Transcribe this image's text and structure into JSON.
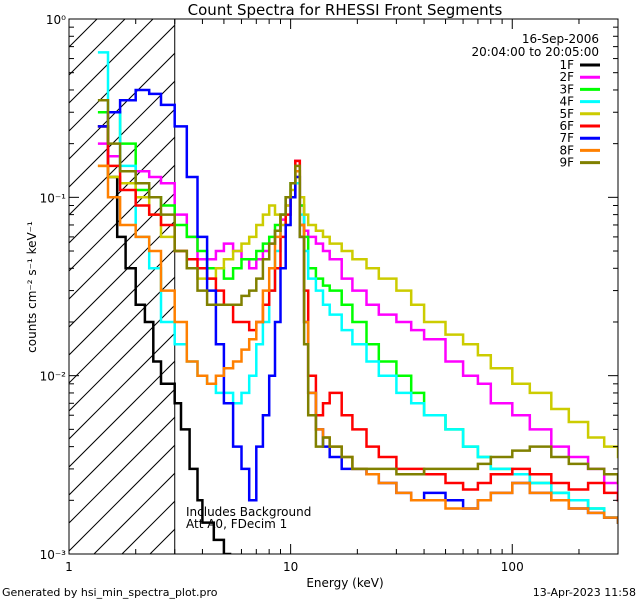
{
  "chart_data": {
    "type": "line",
    "title": "Count Spectra for RHESSI Front Segments",
    "xlabel": "Energy (keV)",
    "ylabel": "counts cm⁻² s⁻¹ keV⁻¹",
    "xscale": "log",
    "yscale": "log",
    "xlim": [
      1,
      300
    ],
    "ylim": [
      0.001,
      1
    ],
    "x_ticks": [
      {
        "value": 1,
        "label": "1"
      },
      {
        "value": 10,
        "label": "10"
      },
      {
        "value": 100,
        "label": "100"
      }
    ],
    "y_ticks": [
      {
        "value": 1,
        "label": "10⁰"
      },
      {
        "value": 0.1,
        "label": "10⁻¹"
      },
      {
        "value": 0.01,
        "label": "10⁻²"
      },
      {
        "value": 0.001,
        "label": "10⁻³"
      }
    ],
    "hatched_region": {
      "x_from": 1,
      "x_to": 3
    },
    "date": "16-Sep-2006",
    "time_range": "20:04:00 to 20:05:00",
    "annotation_lines": [
      "Includes Background",
      "Att A0, FDecim 1"
    ],
    "legend_position": "top-right",
    "series": [
      {
        "name": "1F",
        "color": "#000000",
        "x": [
          1.35,
          1.5,
          1.65,
          1.8,
          2.0,
          2.2,
          2.4,
          2.6,
          2.8,
          3.0,
          3.2,
          3.5,
          3.8,
          4.0,
          4.5,
          5.0
        ],
        "y": [
          0.25,
          0.13,
          0.06,
          0.04,
          0.025,
          0.02,
          0.012,
          0.009,
          0.009,
          0.007,
          0.005,
          0.003,
          0.002,
          0.0015,
          0.0012,
          0.001
        ]
      },
      {
        "name": "2F",
        "color": "#ff00ff",
        "x": [
          1.35,
          1.5,
          1.7,
          2.0,
          2.3,
          2.6,
          3.0,
          3.4,
          3.8,
          4.2,
          4.6,
          5.0,
          5.5,
          6.0,
          6.5,
          7.0,
          7.5,
          8.0,
          8.5,
          9.0,
          9.5,
          10.0,
          10.5,
          11.0,
          11.5,
          12.0,
          13.0,
          14.0,
          15.0,
          17.0,
          19.0,
          22.0,
          25.0,
          30.0,
          35.0,
          40.0,
          50.0,
          60.0,
          70.0,
          80.0,
          100.0,
          120.0,
          150.0,
          180.0,
          220.0,
          260.0,
          300.0
        ],
        "y": [
          0.2,
          0.17,
          0.14,
          0.14,
          0.13,
          0.12,
          0.08,
          0.06,
          0.045,
          0.045,
          0.05,
          0.055,
          0.05,
          0.045,
          0.04,
          0.045,
          0.05,
          0.055,
          0.065,
          0.075,
          0.09,
          0.1,
          0.16,
          0.09,
          0.065,
          0.06,
          0.055,
          0.05,
          0.045,
          0.035,
          0.03,
          0.025,
          0.022,
          0.02,
          0.018,
          0.016,
          0.012,
          0.01,
          0.009,
          0.007,
          0.006,
          0.005,
          0.004,
          0.0035,
          0.003,
          0.0025,
          0.002
        ]
      },
      {
        "name": "3F",
        "color": "#00ff00",
        "x": [
          1.35,
          1.5,
          1.7,
          2.0,
          2.3,
          2.6,
          3.0,
          3.4,
          3.8,
          4.2,
          4.6,
          5.0,
          5.5,
          6.0,
          6.5,
          7.0,
          7.5,
          8.0,
          8.5,
          9.0,
          9.5,
          10.0,
          10.5,
          11.0,
          11.5,
          12.0,
          13.0,
          14.0,
          15.0,
          17.0,
          19.0,
          22.0,
          25.0,
          30.0,
          35.0,
          40.0,
          50.0,
          60.0,
          70.0,
          80.0,
          100.0,
          120.0,
          150.0,
          180.0,
          220.0,
          260.0,
          300.0
        ],
        "y": [
          0.3,
          0.3,
          0.2,
          0.11,
          0.1,
          0.09,
          0.07,
          0.06,
          0.05,
          0.04,
          0.04,
          0.035,
          0.04,
          0.045,
          0.045,
          0.05,
          0.055,
          0.06,
          0.07,
          0.08,
          0.1,
          0.12,
          0.14,
          0.09,
          0.06,
          0.04,
          0.035,
          0.032,
          0.03,
          0.025,
          0.02,
          0.015,
          0.012,
          0.01,
          0.008,
          0.006,
          0.005,
          0.004,
          0.0035,
          0.003,
          0.0028,
          0.0025,
          0.0022,
          0.002,
          0.0018,
          0.0016,
          0.0015
        ]
      },
      {
        "name": "4F",
        "color": "#00ffff",
        "x": [
          1.35,
          1.5,
          1.7,
          2.0,
          2.3,
          2.6,
          3.0,
          3.4,
          3.8,
          4.2,
          4.6,
          5.0,
          5.5,
          6.0,
          6.5,
          7.0,
          7.5,
          8.0,
          8.5,
          9.0,
          9.5,
          10.0,
          10.5,
          11.0,
          11.5,
          12.0,
          13.0,
          14.0,
          15.0,
          17.0,
          19.0,
          22.0,
          25.0,
          30.0,
          35.0,
          40.0,
          50.0,
          60.0,
          70.0,
          80.0,
          100.0,
          120.0,
          150.0,
          180.0,
          220.0,
          260.0,
          300.0
        ],
        "y": [
          0.65,
          0.3,
          0.15,
          0.06,
          0.04,
          0.02,
          0.015,
          0.012,
          0.01,
          0.009,
          0.008,
          0.008,
          0.007,
          0.008,
          0.01,
          0.015,
          0.02,
          0.03,
          0.05,
          0.08,
          0.1,
          0.12,
          0.12,
          0.08,
          0.05,
          0.035,
          0.03,
          0.025,
          0.022,
          0.018,
          0.015,
          0.012,
          0.01,
          0.008,
          0.007,
          0.006,
          0.005,
          0.004,
          0.0035,
          0.003,
          0.0028,
          0.0025,
          0.0022,
          0.002,
          0.0018,
          0.0016,
          0.0015
        ]
      },
      {
        "name": "5F",
        "color": "#cccc00",
        "x": [
          1.35,
          1.5,
          1.7,
          2.0,
          2.3,
          2.6,
          3.0,
          3.4,
          3.8,
          4.2,
          4.6,
          5.0,
          5.5,
          6.0,
          6.5,
          7.0,
          7.5,
          8.0,
          8.5,
          9.0,
          9.5,
          10.0,
          10.5,
          11.0,
          11.5,
          12.0,
          13.0,
          14.0,
          15.0,
          17.0,
          19.0,
          22.0,
          25.0,
          30.0,
          35.0,
          40.0,
          50.0,
          60.0,
          70.0,
          80.0,
          100.0,
          120.0,
          150.0,
          180.0,
          220.0,
          260.0,
          300.0
        ],
        "y": [
          0.15,
          0.13,
          0.12,
          0.1,
          0.08,
          0.06,
          0.05,
          0.04,
          0.035,
          0.035,
          0.04,
          0.045,
          0.05,
          0.055,
          0.06,
          0.07,
          0.08,
          0.09,
          0.08,
          0.07,
          0.09,
          0.11,
          0.13,
          0.1,
          0.08,
          0.07,
          0.065,
          0.06,
          0.055,
          0.05,
          0.045,
          0.04,
          0.035,
          0.03,
          0.025,
          0.02,
          0.017,
          0.015,
          0.013,
          0.011,
          0.009,
          0.008,
          0.0065,
          0.0055,
          0.0045,
          0.004,
          0.0035
        ]
      },
      {
        "name": "6F",
        "color": "#ff0000",
        "x": [
          1.35,
          1.5,
          1.7,
          2.0,
          2.3,
          2.6,
          3.0,
          3.4,
          3.8,
          4.2,
          4.6,
          5.0,
          5.5,
          6.0,
          6.5,
          7.0,
          7.5,
          8.0,
          8.5,
          9.0,
          9.5,
          10.0,
          10.5,
          11.0,
          11.5,
          12.0,
          13.0,
          14.0,
          15.0,
          17.0,
          19.0,
          22.0,
          25.0,
          30.0,
          35.0,
          40.0,
          50.0,
          60.0,
          70.0,
          80.0,
          100.0,
          120.0,
          150.0,
          180.0,
          220.0,
          260.0,
          300.0
        ],
        "y": [
          0.25,
          0.15,
          0.11,
          0.09,
          0.08,
          0.07,
          0.05,
          0.045,
          0.04,
          0.035,
          0.03,
          0.025,
          0.02,
          0.02,
          0.018,
          0.02,
          0.025,
          0.03,
          0.04,
          0.06,
          0.08,
          0.1,
          0.16,
          0.07,
          0.03,
          0.01,
          0.006,
          0.007,
          0.008,
          0.006,
          0.005,
          0.004,
          0.0035,
          0.003,
          0.003,
          0.0028,
          0.0025,
          0.0023,
          0.0025,
          0.0028,
          0.003,
          0.0028,
          0.0025,
          0.0023,
          0.0025,
          0.0022,
          0.002
        ]
      },
      {
        "name": "7F",
        "color": "#0000ff",
        "x": [
          1.35,
          1.5,
          1.7,
          2.0,
          2.3,
          2.6,
          3.0,
          3.4,
          3.8,
          4.2,
          4.6,
          5.0,
          5.5,
          6.0,
          6.5,
          7.0,
          7.5,
          8.0,
          8.5,
          9.0,
          9.5,
          10.0,
          10.5,
          11.0,
          11.5,
          12.0,
          13.0,
          14.0,
          15.0,
          17.0,
          19.0,
          22.0,
          25.0,
          30.0,
          35.0,
          40.0,
          50.0,
          60.0,
          70.0,
          80.0,
          100.0,
          120.0,
          150.0,
          180.0,
          220.0,
          260.0,
          300.0
        ],
        "y": [
          0.25,
          0.3,
          0.35,
          0.4,
          0.38,
          0.33,
          0.25,
          0.13,
          0.06,
          0.03,
          0.015,
          0.007,
          0.004,
          0.003,
          0.002,
          0.004,
          0.006,
          0.01,
          0.02,
          0.04,
          0.07,
          0.1,
          0.13,
          0.06,
          0.02,
          0.008,
          0.005,
          0.004,
          0.0035,
          0.003,
          0.003,
          0.0028,
          0.0025,
          0.0022,
          0.002,
          0.0022,
          0.002,
          0.0018,
          0.002,
          0.0022,
          0.0025,
          0.0022,
          0.002,
          0.0018,
          0.0017,
          0.0016,
          0.0015
        ]
      },
      {
        "name": "8F",
        "color": "#ff8000",
        "x": [
          1.35,
          1.5,
          1.7,
          2.0,
          2.3,
          2.6,
          3.0,
          3.4,
          3.8,
          4.2,
          4.6,
          5.0,
          5.5,
          6.0,
          6.5,
          7.0,
          7.5,
          8.0,
          8.5,
          9.0,
          9.5,
          10.0,
          10.5,
          11.0,
          11.5,
          12.0,
          13.0,
          14.0,
          15.0,
          17.0,
          19.0,
          22.0,
          25.0,
          30.0,
          35.0,
          40.0,
          50.0,
          60.0,
          70.0,
          80.0,
          100.0,
          120.0,
          150.0,
          180.0,
          220.0,
          260.0,
          300.0
        ],
        "y": [
          0.15,
          0.1,
          0.07,
          0.06,
          0.05,
          0.03,
          0.02,
          0.012,
          0.01,
          0.009,
          0.01,
          0.011,
          0.012,
          0.014,
          0.016,
          0.02,
          0.03,
          0.04,
          0.06,
          0.08,
          0.1,
          0.12,
          0.14,
          0.07,
          0.02,
          0.008,
          0.005,
          0.0045,
          0.004,
          0.0035,
          0.003,
          0.0028,
          0.0025,
          0.0022,
          0.002,
          0.002,
          0.0018,
          0.0018,
          0.002,
          0.0022,
          0.0025,
          0.0022,
          0.002,
          0.0018,
          0.0017,
          0.0016,
          0.0015
        ]
      },
      {
        "name": "9F",
        "color": "#808000",
        "x": [
          1.35,
          1.5,
          1.7,
          2.0,
          2.3,
          2.6,
          3.0,
          3.4,
          3.8,
          4.2,
          4.6,
          5.0,
          5.5,
          6.0,
          6.5,
          7.0,
          7.5,
          8.0,
          8.5,
          9.0,
          9.5,
          10.0,
          10.5,
          11.0,
          11.5,
          12.0,
          13.0,
          14.0,
          15.0,
          17.0,
          19.0,
          22.0,
          25.0,
          30.0,
          35.0,
          40.0,
          50.0,
          60.0,
          70.0,
          80.0,
          100.0,
          120.0,
          150.0,
          180.0,
          220.0,
          260.0,
          300.0
        ],
        "y": [
          0.35,
          0.2,
          0.14,
          0.12,
          0.1,
          0.08,
          0.05,
          0.04,
          0.03,
          0.025,
          0.025,
          0.025,
          0.025,
          0.028,
          0.03,
          0.035,
          0.045,
          0.055,
          0.065,
          0.08,
          0.1,
          0.12,
          0.15,
          0.06,
          0.015,
          0.006,
          0.004,
          0.0045,
          0.004,
          0.0035,
          0.003,
          0.003,
          0.003,
          0.0028,
          0.0028,
          0.003,
          0.003,
          0.003,
          0.0032,
          0.0035,
          0.0038,
          0.004,
          0.0035,
          0.0032,
          0.003,
          0.0028,
          0.0025
        ]
      }
    ]
  },
  "footer": {
    "generated_by": "Generated by hsi_min_spectra_plot.pro",
    "timestamp": "13-Apr-2023 11:58"
  }
}
